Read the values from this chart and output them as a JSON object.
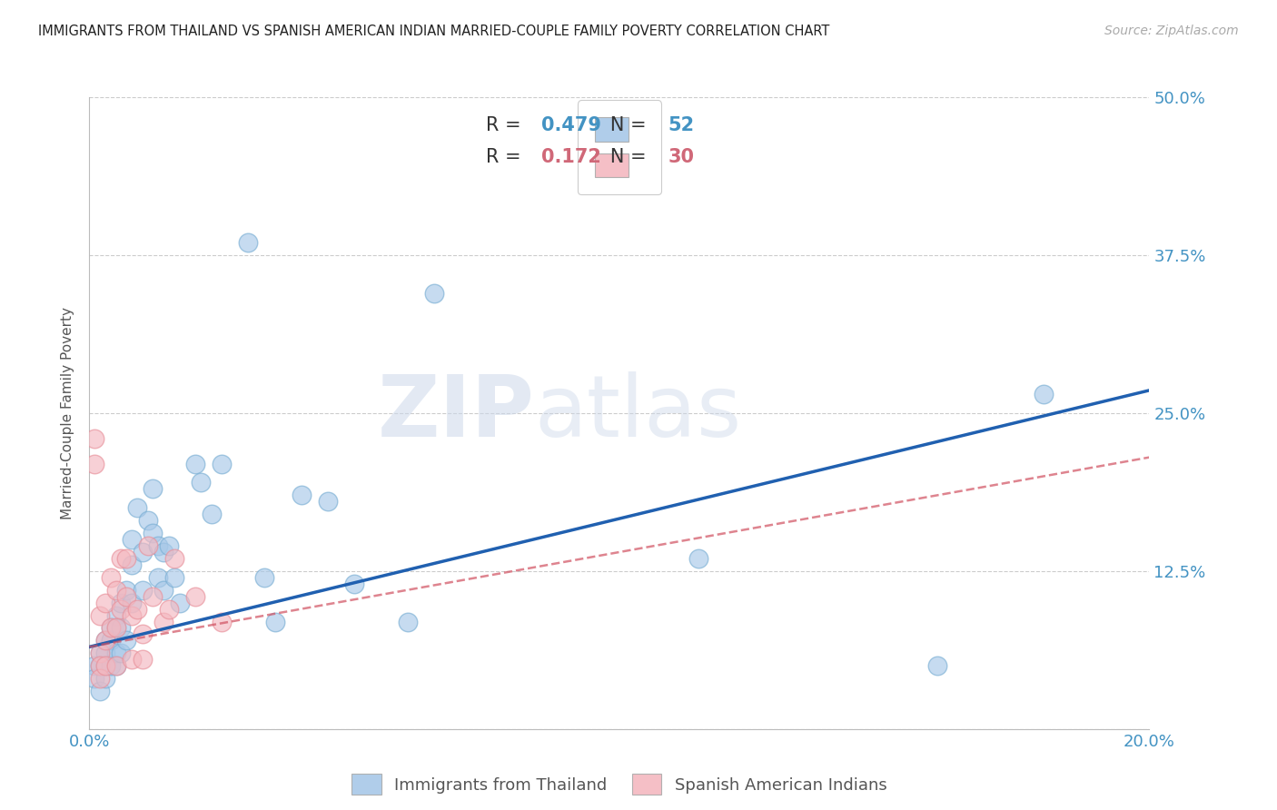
{
  "title": "IMMIGRANTS FROM THAILAND VS SPANISH AMERICAN INDIAN MARRIED-COUPLE FAMILY POVERTY CORRELATION CHART",
  "source": "Source: ZipAtlas.com",
  "ylabel": "Married-Couple Family Poverty",
  "xlim": [
    0.0,
    0.2
  ],
  "ylim": [
    0.0,
    0.5
  ],
  "xticks": [
    0.0,
    0.04,
    0.08,
    0.12,
    0.16,
    0.2
  ],
  "xticklabels": [
    "0.0%",
    "",
    "",
    "",
    "",
    "20.0%"
  ],
  "yticks": [
    0.0,
    0.125,
    0.25,
    0.375,
    0.5
  ],
  "ytick_right_labels": [
    "",
    "12.5%",
    "25.0%",
    "37.5%",
    "50.0%"
  ],
  "legend1_r": "0.479",
  "legend1_n": "52",
  "legend2_r": "0.172",
  "legend2_n": "30",
  "blue_color": "#a8c8e8",
  "pink_color": "#f4b8c0",
  "blue_edge_color": "#7aafd4",
  "pink_edge_color": "#e8909a",
  "blue_line_color": "#2060b0",
  "pink_line_color": "#d05060",
  "tick_color": "#4393c3",
  "axis_color": "#bbbbbb",
  "grid_color": "#cccccc",
  "watermark_zip": "ZIP",
  "watermark_atlas": "atlas",
  "blue_scatter_x": [
    0.001,
    0.001,
    0.002,
    0.002,
    0.002,
    0.003,
    0.003,
    0.003,
    0.003,
    0.004,
    0.004,
    0.004,
    0.005,
    0.005,
    0.005,
    0.005,
    0.006,
    0.006,
    0.006,
    0.007,
    0.007,
    0.008,
    0.008,
    0.008,
    0.009,
    0.01,
    0.01,
    0.011,
    0.012,
    0.012,
    0.013,
    0.013,
    0.014,
    0.014,
    0.015,
    0.016,
    0.017,
    0.02,
    0.021,
    0.023,
    0.025,
    0.03,
    0.033,
    0.035,
    0.045,
    0.05,
    0.06,
    0.065,
    0.115,
    0.16,
    0.18,
    0.04
  ],
  "blue_scatter_y": [
    0.05,
    0.04,
    0.06,
    0.05,
    0.03,
    0.07,
    0.06,
    0.05,
    0.04,
    0.08,
    0.07,
    0.05,
    0.09,
    0.08,
    0.06,
    0.05,
    0.1,
    0.08,
    0.06,
    0.11,
    0.07,
    0.15,
    0.13,
    0.1,
    0.175,
    0.14,
    0.11,
    0.165,
    0.19,
    0.155,
    0.145,
    0.12,
    0.14,
    0.11,
    0.145,
    0.12,
    0.1,
    0.21,
    0.195,
    0.17,
    0.21,
    0.385,
    0.12,
    0.085,
    0.18,
    0.115,
    0.085,
    0.345,
    0.135,
    0.05,
    0.265,
    0.185
  ],
  "pink_scatter_x": [
    0.001,
    0.001,
    0.002,
    0.002,
    0.002,
    0.002,
    0.003,
    0.003,
    0.003,
    0.004,
    0.004,
    0.005,
    0.005,
    0.005,
    0.006,
    0.006,
    0.007,
    0.007,
    0.008,
    0.008,
    0.009,
    0.01,
    0.01,
    0.011,
    0.012,
    0.014,
    0.015,
    0.016,
    0.02,
    0.025
  ],
  "pink_scatter_y": [
    0.23,
    0.21,
    0.09,
    0.06,
    0.05,
    0.04,
    0.1,
    0.07,
    0.05,
    0.12,
    0.08,
    0.11,
    0.08,
    0.05,
    0.135,
    0.095,
    0.135,
    0.105,
    0.09,
    0.055,
    0.095,
    0.075,
    0.055,
    0.145,
    0.105,
    0.085,
    0.095,
    0.135,
    0.105,
    0.085
  ],
  "blue_trend_x0": 0.0,
  "blue_trend_x1": 0.2,
  "blue_trend_y0": 0.065,
  "blue_trend_y1": 0.268,
  "pink_trend_x0": 0.0,
  "pink_trend_x1": 0.2,
  "pink_trend_y0": 0.065,
  "pink_trend_y1": 0.215
}
